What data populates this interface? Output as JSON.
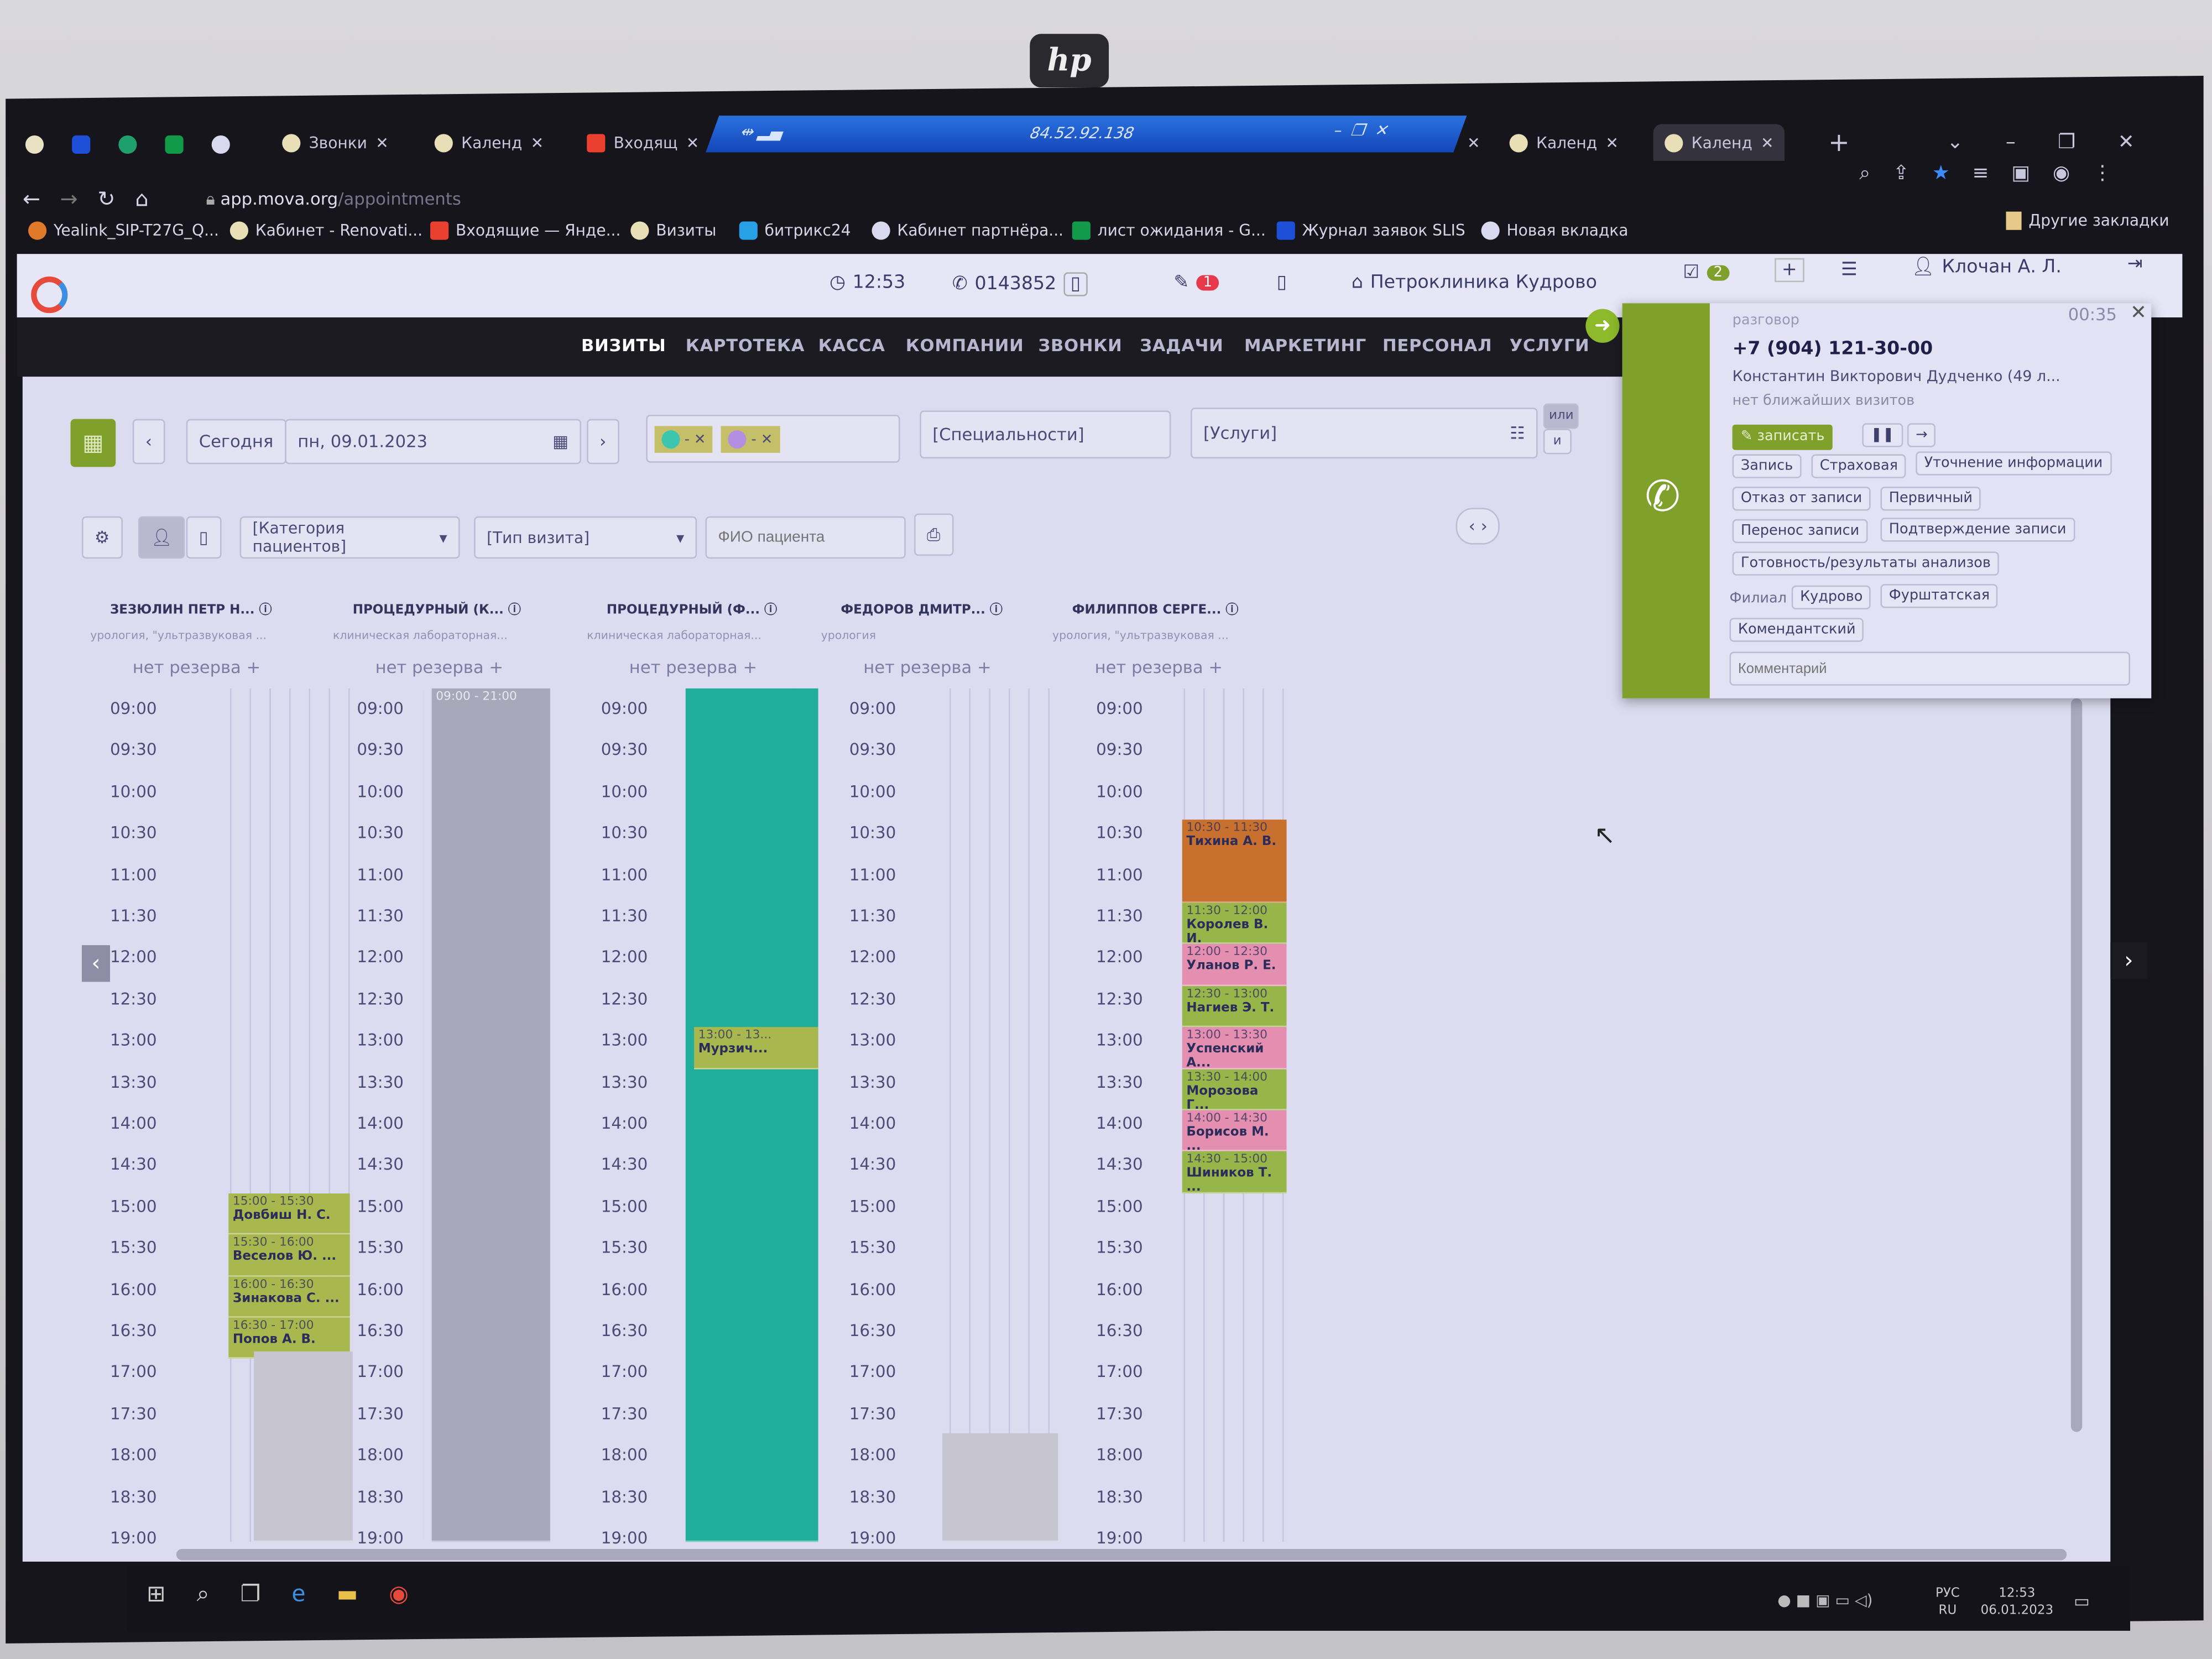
{
  "monitor": {
    "brand": "hp"
  },
  "browser": {
    "tabs": [
      {
        "label": "Звонки"
      },
      {
        "label": "Календ"
      },
      {
        "label": "Входящ"
      },
      {
        "label": "Календ"
      },
      {
        "label": "Календ",
        "active": true
      }
    ],
    "remote_bar": {
      "ip": "84.52.92.138"
    },
    "url_host": "app.mova.org",
    "url_path": "/appointments",
    "bookmarks": [
      "Yealink_SIP-T27G_Q...",
      "Кабинет - Renovati...",
      "Входящие — Янде...",
      "Визиты",
      "битрикс24",
      "Кабинет партнёра...",
      "лист ожидания - G...",
      "Журнал заявок SLIS",
      "Новая вкладка"
    ],
    "other_bookmarks": "Другие закладки"
  },
  "header": {
    "time": "12:53",
    "phone_ext": "0143852",
    "notif_count": "1",
    "clinic": "Петроклиника Кудрово",
    "tasks_count": "2",
    "user": "Клочан А. Л."
  },
  "nav": {
    "items": [
      "ВИЗИТЫ",
      "КАРТОТЕКА",
      "КАССА",
      "КОМПАНИИ",
      "ЗВОНКИ",
      "ЗАДАЧИ",
      "МАРКЕТИНГ",
      "ПЕРСОНАЛ",
      "УСЛУГИ"
    ],
    "active": 0
  },
  "toolbar": {
    "today": "Сегодня",
    "date": "пн, 09.01.2023",
    "specialties": "[Специальности]",
    "services": "[Услуги]",
    "or": "или",
    "and": "и",
    "patient_category": "[Категория пациентов]",
    "visit_type": "[Тип визита]",
    "patient_placeholder": "ФИО пациента",
    "colors": {
      "teal": "#3cc6b0",
      "purple": "#b48ee0"
    }
  },
  "schedule": {
    "times": [
      "09:00",
      "09:30",
      "10:00",
      "10:30",
      "11:00",
      "11:30",
      "12:00",
      "12:30",
      "13:00",
      "13:30",
      "14:00",
      "14:30",
      "15:00",
      "15:30",
      "16:00",
      "16:30",
      "17:00",
      "17:30",
      "18:00",
      "18:30",
      "19:00"
    ],
    "no_reserve": "нет резерва",
    "columns": [
      {
        "name": "ЗЕЗЮЛИН ПЕТР Н...",
        "sub": "урология, \"ультразвуковая ...",
        "events": [
          {
            "time": "15:00 - 15:30",
            "start": "15:00",
            "end": "15:30",
            "patient": "Довбиш Н. С.",
            "color": "#a8b84e"
          },
          {
            "time": "15:30 - 16:00",
            "start": "15:30",
            "end": "16:00",
            "patient": "Веселов Ю. ...",
            "color": "#a8b84e"
          },
          {
            "time": "16:00 - 16:30",
            "start": "16:00",
            "end": "16:30",
            "patient": "Зинакова С. ...",
            "color": "#a8b84e"
          },
          {
            "time": "16:30 - 17:00",
            "start": "16:30",
            "end": "17:00",
            "patient": "Попов А. В.",
            "color": "#a8b84e"
          }
        ]
      },
      {
        "name": "ПРОЦЕДУРНЫЙ (К...",
        "sub": "клиническая лабораторная...",
        "block": {
          "label": "09:00 - 21:00",
          "color": "#a9a8bb"
        },
        "events": []
      },
      {
        "name": "ПРОЦЕДУРНЫЙ (Ф...",
        "sub": "клиническая лабораторная...",
        "block": {
          "label": "",
          "color": "#1fae9c"
        },
        "events": [
          {
            "time": "13:00 - 13...",
            "start": "13:00",
            "end": "13:30",
            "patient": "Мурзич...",
            "color": "#a8b84e"
          }
        ]
      },
      {
        "name": "ФЕДОРОВ ДМИТР...",
        "sub": "урология",
        "events": []
      },
      {
        "name": "ФИЛИППОВ СЕРГЕ...",
        "sub": "урология, \"ультразвуковая ...",
        "events": [
          {
            "time": "10:30 - 11:30",
            "start": "10:30",
            "end": "11:30",
            "patient": "Тихина А. В.",
            "color": "#c8702e"
          },
          {
            "time": "11:30 - 12:00",
            "start": "11:30",
            "end": "12:00",
            "patient": "Королев В. И.",
            "color": "#97b64a"
          },
          {
            "time": "12:00 - 12:30",
            "start": "12:00",
            "end": "12:30",
            "patient": "Уланов Р. Е.",
            "color": "#e58fb0"
          },
          {
            "time": "12:30 - 13:00",
            "start": "12:30",
            "end": "13:00",
            "patient": "Нагиев Э. Т.",
            "color": "#97b64a"
          },
          {
            "time": "13:00 - 13:30",
            "start": "13:00",
            "end": "13:30",
            "patient": "Успенский А...",
            "color": "#e58fb0"
          },
          {
            "time": "13:30 - 14:00",
            "start": "13:30",
            "end": "14:00",
            "patient": "Морозова Г...",
            "color": "#97b64a"
          },
          {
            "time": "14:00 - 14:30",
            "start": "14:00",
            "end": "14:30",
            "patient": "Борисов М. ...",
            "color": "#e58fb0"
          },
          {
            "time": "14:30 - 15:00",
            "start": "14:30",
            "end": "15:00",
            "patient": "Шиников Т. ...",
            "color": "#97b64a"
          }
        ]
      }
    ]
  },
  "call_popup": {
    "status": "разговор",
    "timer": "00:35",
    "phone": "+7 (904) 121-30-00",
    "name": "Константин Викторович Дудченко (49 л...",
    "visits": "нет ближайших визитов",
    "record": "записать",
    "tags": [
      "Запись",
      "Страховая",
      "Уточнение информации",
      "Отказ от записи",
      "Первичный",
      "Перенос записи",
      "Подтверждение записи",
      "Готовность/результаты анализов"
    ],
    "branch_label": "Филиал",
    "branches": [
      "Кудрово",
      "Фурштатская",
      "Комендантский"
    ],
    "comment_placeholder": "Комментарий"
  },
  "taskbar": {
    "lang": "РУС",
    "lang2": "RU",
    "time": "12:53",
    "date": "06.01.2023"
  }
}
